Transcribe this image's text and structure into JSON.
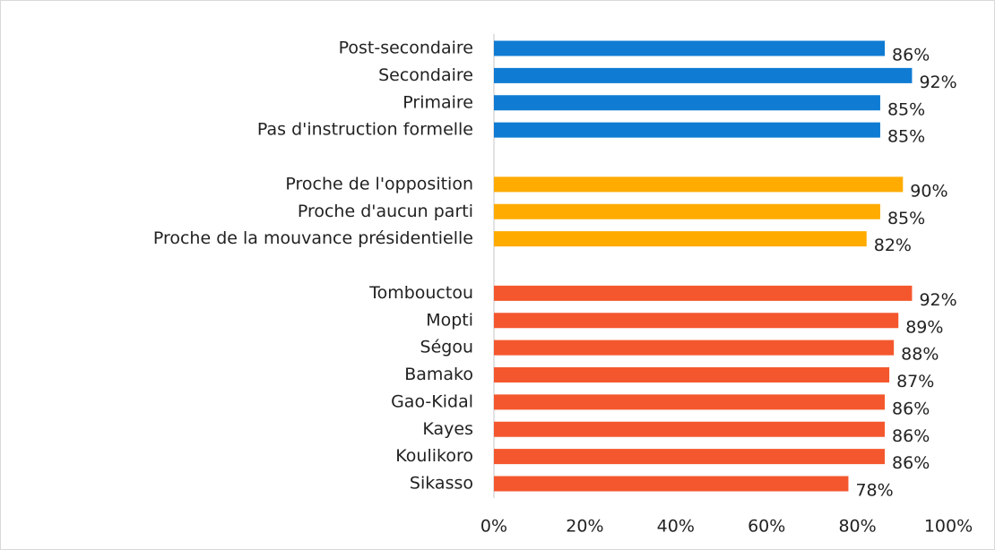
{
  "chart_data": {
    "type": "bar",
    "orientation": "horizontal",
    "categories": [
      "Post-secondaire",
      "Secondaire",
      "Primaire",
      "Pas d'instruction formelle",
      null,
      "Proche de l'opposition",
      "Proche d'aucun parti",
      "Proche de la mouvance présidentielle",
      null,
      "Tombouctou",
      "Mopti",
      "Ségou",
      "Bamako",
      "Gao-Kidal",
      "Kayes",
      "Koulikoro",
      "Sikasso"
    ],
    "series": [
      {
        "color": "#0f7bd3",
        "values": [
          86,
          92,
          85,
          85,
          null,
          null,
          null,
          null,
          null,
          null,
          null,
          null,
          null,
          null,
          null,
          null,
          null
        ],
        "value_labels": [
          "86%",
          "92%",
          "85%",
          "85%",
          null,
          null,
          null,
          null,
          null,
          null,
          null,
          null,
          null,
          null,
          null,
          null,
          null
        ]
      },
      {
        "color": "#ffab00",
        "values": [
          null,
          null,
          null,
          null,
          null,
          90,
          85,
          82,
          null,
          null,
          null,
          null,
          null,
          null,
          null,
          null,
          null
        ],
        "value_labels": [
          null,
          null,
          null,
          null,
          null,
          "90%",
          "85%",
          "82%",
          null,
          null,
          null,
          null,
          null,
          null,
          null,
          null,
          null
        ]
      },
      {
        "color": "#f4572d",
        "values": [
          null,
          null,
          null,
          null,
          null,
          null,
          null,
          null,
          null,
          92,
          89,
          88,
          87,
          86,
          86,
          86,
          78
        ],
        "value_labels": [
          null,
          null,
          null,
          null,
          null,
          null,
          null,
          null,
          null,
          "92%",
          "89%",
          "88%",
          "87%",
          "86%",
          "86%",
          "86%",
          "78%"
        ]
      }
    ],
    "xlim": [
      0,
      100
    ],
    "xticks": [
      {
        "value": 0,
        "label": "0%"
      },
      {
        "value": 20,
        "label": "20%"
      },
      {
        "value": 40,
        "label": "40%"
      },
      {
        "value": 60,
        "label": "60%"
      },
      {
        "value": 80,
        "label": "80%"
      },
      {
        "value": 100,
        "label": "100%"
      }
    ],
    "grid": false
  }
}
